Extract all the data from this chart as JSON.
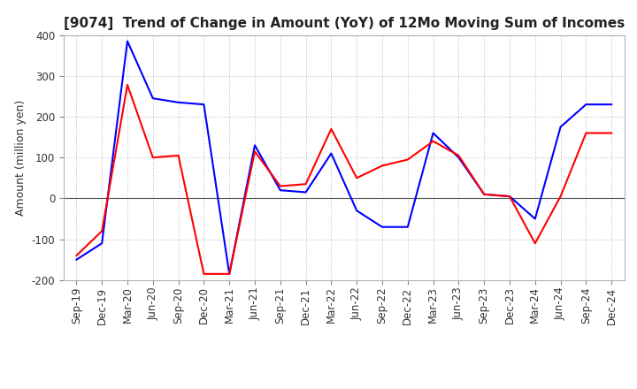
{
  "title": "[9074]  Trend of Change in Amount (YoY) of 12Mo Moving Sum of Incomes",
  "ylabel": "Amount (million yen)",
  "title_color": "#222222",
  "background_color": "#ffffff",
  "grid_color": "#bbbbbb",
  "zero_line_color": "#555555",
  "ordinary_income_color": "#0000ff",
  "net_income_color": "#ff0000",
  "ylim": [
    -200,
    400
  ],
  "yticks": [
    -200,
    -100,
    0,
    100,
    200,
    300,
    400
  ],
  "x_labels": [
    "Sep-19",
    "Dec-19",
    "Mar-20",
    "Jun-20",
    "Sep-20",
    "Dec-20",
    "Mar-21",
    "Jun-21",
    "Sep-21",
    "Dec-21",
    "Mar-22",
    "Jun-22",
    "Sep-22",
    "Dec-22",
    "Mar-23",
    "Jun-23",
    "Sep-23",
    "Dec-23",
    "Mar-24",
    "Jun-24",
    "Sep-24",
    "Dec-24"
  ],
  "ordinary_income": [
    -150,
    -110,
    385,
    245,
    235,
    230,
    -185,
    130,
    20,
    15,
    110,
    -30,
    -70,
    -70,
    160,
    100,
    10,
    5,
    -50,
    175,
    230,
    230
  ],
  "net_income": [
    -140,
    -80,
    278,
    100,
    105,
    -185,
    -185,
    115,
    30,
    35,
    170,
    50,
    80,
    95,
    140,
    105,
    10,
    5,
    -110,
    5,
    160,
    160
  ],
  "title_fontsize": 11,
  "ylabel_fontsize": 9,
  "tick_fontsize": 8.5,
  "legend_fontsize": 9,
  "linewidth": 1.5
}
